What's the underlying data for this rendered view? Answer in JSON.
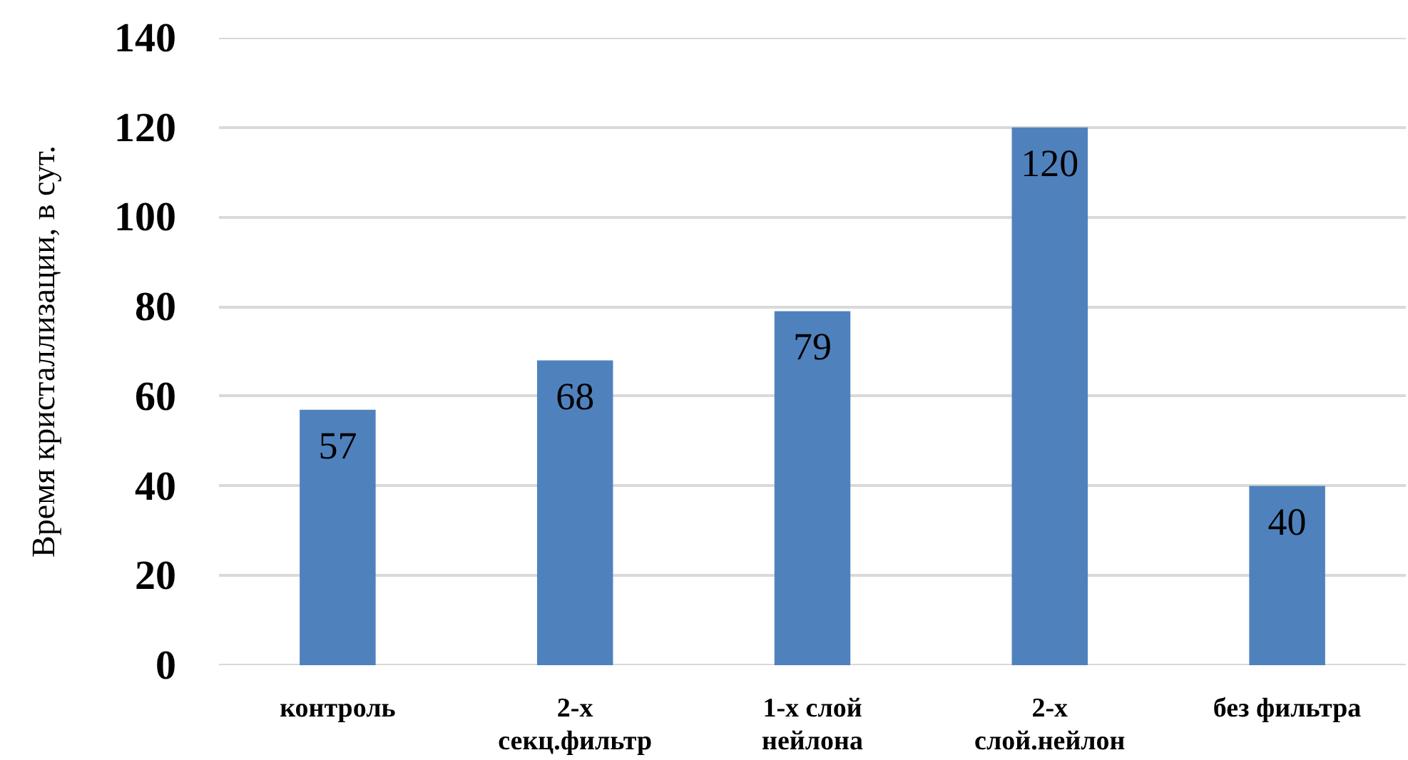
{
  "chart_data": {
    "type": "bar",
    "categories": [
      "контроль",
      "2-х секц.фильтр",
      "1-х слой нейлона",
      "2-х слой.нейлон",
      "без фильтра"
    ],
    "values": [
      57,
      68,
      79,
      120,
      40
    ],
    "color": "#4f81bd",
    "ylabel": "Время кристаллизации, в сут.",
    "ylim": [
      0,
      140
    ],
    "yticks": [
      0,
      20,
      40,
      60,
      80,
      100,
      120,
      140
    ],
    "grid": "y",
    "data_labels": true
  }
}
